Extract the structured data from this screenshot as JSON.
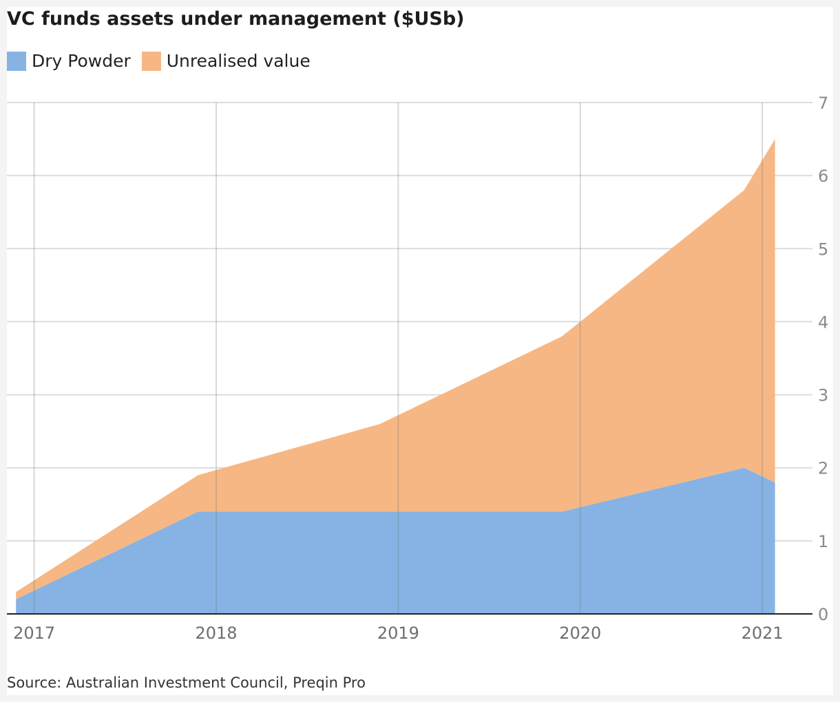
{
  "title": "VC funds assets under management ($USb)",
  "source": "Source: Australian Investment Council, Preqin Pro",
  "colors": {
    "dry_powder": "#86b3e3",
    "unrealised": "#f6b784",
    "grid": "#dcdcdc",
    "axis": "#222222",
    "tick_text": "#8a8a8a"
  },
  "legend": [
    {
      "label": "Dry Powder",
      "color": "#86b3e3"
    },
    {
      "label": "Unrealised value",
      "color": "#f6b784"
    }
  ],
  "chart_data": {
    "type": "area",
    "stacked": true,
    "title": "VC funds assets under management ($USb)",
    "xlabel": "",
    "ylabel": "",
    "x": [
      2016.9,
      2017.9,
      2018.9,
      2019.9,
      2020.9,
      2021.07
    ],
    "x_ticks": [
      2017,
      2018,
      2019,
      2020,
      2021
    ],
    "x_tick_labels": [
      "2017",
      "2018",
      "2019",
      "2020",
      "2021"
    ],
    "xlim": [
      2016.85,
      2021.2
    ],
    "ylim": [
      0,
      7
    ],
    "y_ticks": [
      0,
      1,
      2,
      3,
      4,
      5,
      6,
      7
    ],
    "y_axis_position": "right",
    "grid": true,
    "legend_position": "top-left",
    "series": [
      {
        "name": "Dry Powder",
        "color": "#86b3e3",
        "values": [
          0.2,
          1.4,
          1.4,
          1.4,
          2.0,
          1.8
        ]
      },
      {
        "name": "Unrealised value",
        "color": "#f6b784",
        "values": [
          0.1,
          0.5,
          1.2,
          2.4,
          3.8,
          4.7
        ]
      }
    ]
  }
}
